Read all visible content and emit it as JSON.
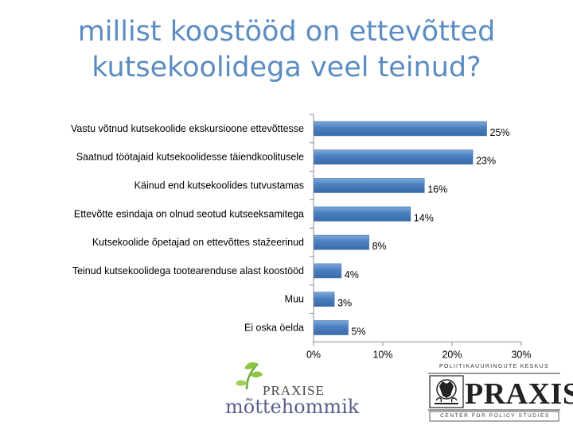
{
  "title": {
    "line1": "millist koostööd on ettevõtted",
    "line2": "kutsekoolidega veel teinud?"
  },
  "chart_data": {
    "type": "bar",
    "orientation": "horizontal",
    "categories": [
      "Vastu võtnud kutsekoolide ekskursioone ettevõttesse",
      "Saatnud töötajaid kutsekoolidesse täiendkoolitusele",
      "Käinud end kutsekoolides tutvustamas",
      "Ettevõtte esindaja on olnud seotud kutseeksamitega",
      "Kutsekoolide õpetajad on ettevõttes stažeerinud",
      "Teinud kutsekoolidega tootearenduse alast koostööd",
      "Muu",
      "Ei oska öelda"
    ],
    "values": [
      25,
      23,
      16,
      14,
      8,
      4,
      3,
      5
    ],
    "value_labels": [
      "25%",
      "23%",
      "16%",
      "14%",
      "8%",
      "4%",
      "3%",
      "5%"
    ],
    "xlim": [
      0,
      30
    ],
    "x_ticks": [
      {
        "value": 0,
        "label": "0%"
      },
      {
        "value": 10,
        "label": "10%"
      },
      {
        "value": 20,
        "label": "20%"
      },
      {
        "value": 30,
        "label": "30%"
      }
    ],
    "grid": false,
    "legend": "none",
    "bar_color": "#4a7fc1",
    "title": "",
    "xlabel": "",
    "ylabel": ""
  },
  "logos": {
    "left": {
      "line1": "PRAXISE",
      "line2": "mõttehommik",
      "icon": "sprout-icon",
      "leaf_color": "#8cc63f"
    },
    "right": {
      "top_text": "POLIITIKAUURINGUTE KESKUS",
      "name": "PRAXIS",
      "bottom_text": "CENTER FOR POLICY STUDIES",
      "icon": "lion-crest-icon"
    }
  }
}
